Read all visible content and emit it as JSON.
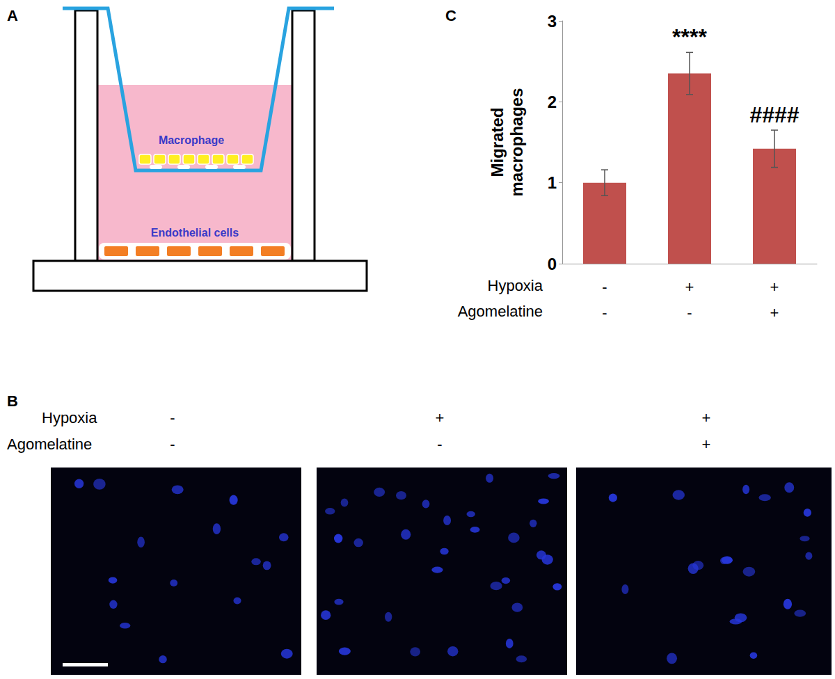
{
  "panel_labels": [
    "A",
    "B",
    "C"
  ],
  "diagram": {
    "labels": [
      "Macrophage",
      "Endothelial cells"
    ]
  },
  "images": {
    "conditions": [
      {
        "name": "Hypoxia",
        "values": [
          "-",
          "+",
          "+"
        ]
      },
      {
        "name": "Agomelatine",
        "values": [
          "-",
          "-",
          "+"
        ]
      }
    ]
  },
  "chart_data": {
    "type": "bar",
    "ylabel": "Migrated\nmacrophages",
    "categories": [
      null,
      null,
      null
    ],
    "values": [
      1.0,
      2.35,
      1.42
    ],
    "errors": [
      0.16,
      0.26,
      0.23
    ],
    "annotations": [
      null,
      "****",
      "####"
    ],
    "conditions": [
      {
        "name": "Hypoxia",
        "values": [
          "-",
          "+",
          "+"
        ]
      },
      {
        "name": "Agomelatine",
        "values": [
          "-",
          "-",
          "+"
        ]
      }
    ],
    "color": "#c0504d",
    "ylim": [
      0,
      3
    ],
    "yticks": [
      0,
      1,
      2,
      3
    ],
    "grid": false
  }
}
